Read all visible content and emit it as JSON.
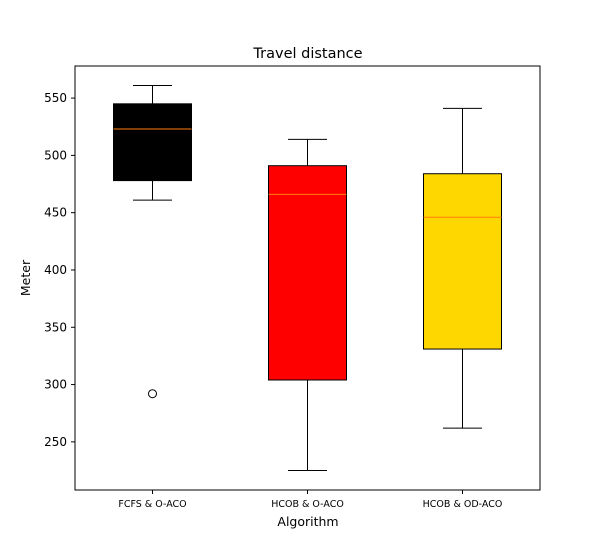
{
  "chart_data": {
    "type": "box",
    "title": "Travel distance",
    "xlabel": "Algorithm",
    "ylabel": "Meter",
    "ylim": [
      208,
      578
    ],
    "yticks": [
      250,
      300,
      350,
      400,
      450,
      500,
      550
    ],
    "grid": false,
    "median_color": "#ff7f0e",
    "categories": [
      "FCFS & O-ACO",
      "HCOB & O-ACO",
      "HCOB & OD-ACO"
    ],
    "boxes": [
      {
        "category": "FCFS & O-ACO",
        "whisker_low": 461,
        "q1": 478,
        "median": 523,
        "q3": 545,
        "whisker_high": 561,
        "outliers": [
          292
        ],
        "fill": "#000000"
      },
      {
        "category": "HCOB & O-ACO",
        "whisker_low": 225,
        "q1": 304,
        "median": 466,
        "q3": 491,
        "whisker_high": 514,
        "outliers": [],
        "fill": "#ff0000"
      },
      {
        "category": "HCOB & OD-ACO",
        "whisker_low": 262,
        "q1": 331,
        "median": 446,
        "q3": 484,
        "whisker_high": 541,
        "outliers": [],
        "fill": "#ffd700"
      }
    ]
  }
}
